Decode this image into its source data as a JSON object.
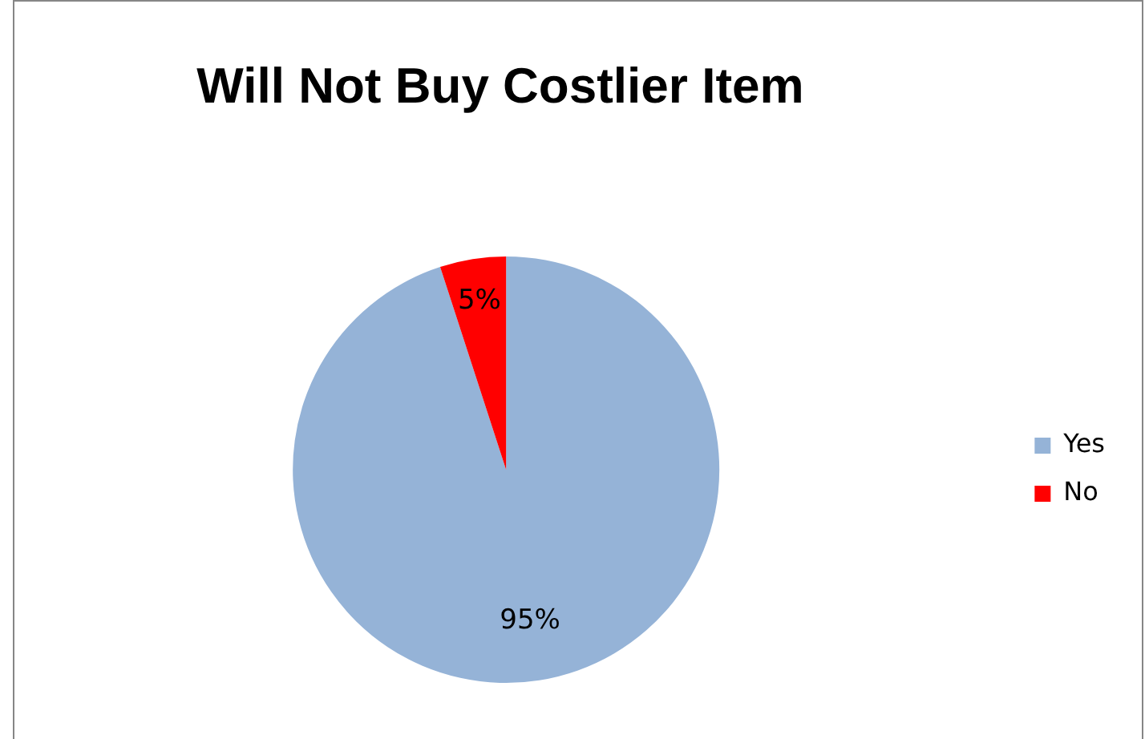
{
  "chart_data": {
    "type": "pie",
    "title": "Will Not Buy Costlier Item",
    "categories": [
      "Yes",
      "No"
    ],
    "values": [
      95,
      5
    ],
    "colors": [
      "#95b3d7",
      "#ff0000"
    ],
    "value_labels": [
      "95%",
      "5%"
    ],
    "legend": "right"
  }
}
